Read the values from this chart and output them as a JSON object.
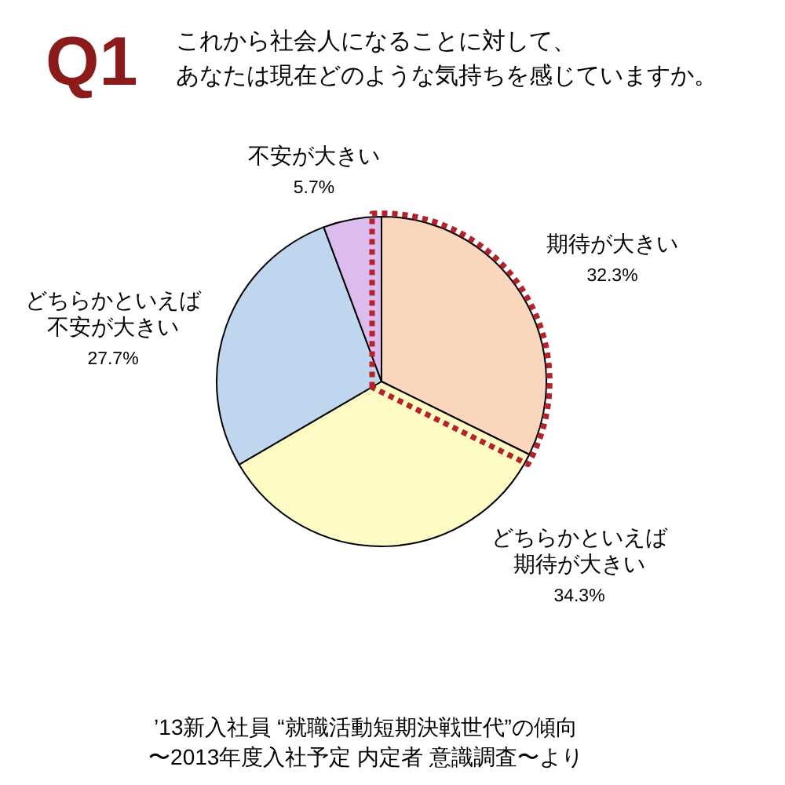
{
  "chart_data": {
    "type": "pie",
    "title": "Q1",
    "subtitle": "これから社会人になることに対して、あなたは現在どのような気持ちを感じていますか。",
    "categories": [
      "期待が大きい",
      "どちらかといえば期待が大きい",
      "どちらかといえば不安が大きい",
      "不安が大きい"
    ],
    "values": [
      32.3,
      34.3,
      27.7,
      5.7
    ],
    "value_labels": [
      "32.3%",
      "34.3%",
      "27.7%",
      "5.7%"
    ],
    "colors": [
      "#fad6bd",
      "#fefcc4",
      "#bfd6ee",
      "#dcbbee"
    ],
    "annotations": [
      "’13新入社員 “就職活動短期決戦世代”の傾向",
      "〜2013年度入社予定 内定者 意識調査〜より"
    ]
  }
}
